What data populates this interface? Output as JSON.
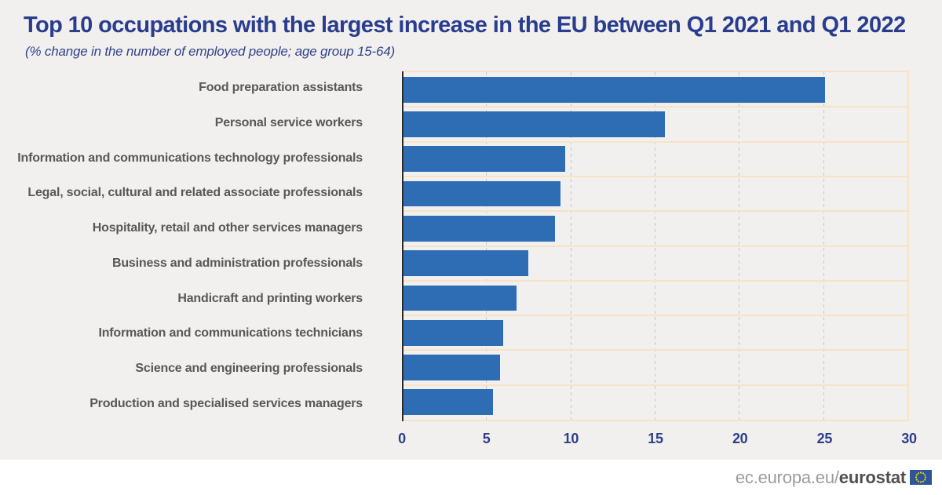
{
  "header": {
    "title": "Top 10 occupations with the largest increase in the EU between Q1 2021 and Q1 2022",
    "subtitle": "(% change in the number of employed people; age group 15-64)"
  },
  "chart_data": {
    "type": "bar",
    "orientation": "horizontal",
    "title": "Top 10 occupations with the largest increase in the EU between Q1 2021 and Q1 2022",
    "subtitle": "(% change in the number of employed people; age group 15-64)",
    "categories": [
      "Food preparation assistants",
      "Personal service workers",
      "Information and communications technology professionals",
      "Legal, social, cultural and related associate professionals",
      "Hospitality, retail and other services managers",
      "Business and administration professionals",
      "Handicraft and printing workers",
      "Information and communications technicians",
      "Science and engineering professionals",
      "Production and specialised services managers"
    ],
    "values": [
      25.1,
      15.6,
      9.7,
      9.4,
      9.1,
      7.5,
      6.8,
      6.0,
      5.8,
      5.4
    ],
    "xlabel": "",
    "ylabel": "",
    "xlim": [
      0,
      30
    ],
    "xticks": [
      0,
      5,
      10,
      15,
      20,
      25,
      30
    ],
    "grid": "vertical-dashed-plus-horizontal-row-separators",
    "legend": "none",
    "bar_color": "#2e6db4"
  },
  "colors": {
    "background": "#f1f0ee",
    "bar_blue": "#2e6db4",
    "title_navy": "#293c8d",
    "tick_navy": "#2d3f8c",
    "label_gray": "#58585a",
    "grid_peach": "#f7e3c6",
    "grid_dash_gray": "#c9c9c9",
    "axis_dark": "#2b2b2b",
    "footer_background": "#ffffff",
    "flag_blue": "#2d5698",
    "flag_stars": "#f7d117"
  },
  "footer": {
    "url_prefix": "ec.europa.eu/",
    "url_bold": "eurostat"
  }
}
